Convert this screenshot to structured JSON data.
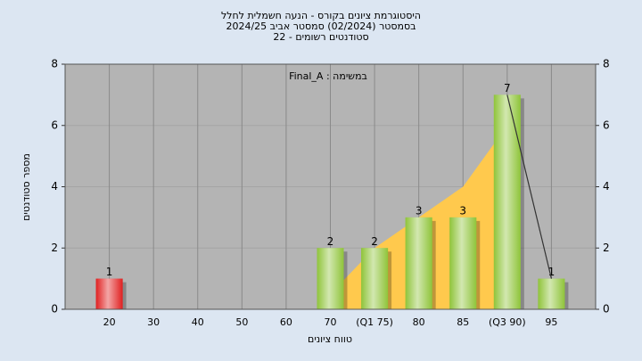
{
  "chart_data": {
    "type": "bar",
    "title_lines": [
      "היסטוגרמת ציונים בקורס - הנעה חשמלית לחלל",
      "בסמסטר  (02/2024)  סמסטר אביב 2024/25",
      "סטודנטים רשומים - 22"
    ],
    "legend_text": "Final_A : במשימה",
    "x_label": "טווח ציונים",
    "y_label": "מספר סטודנטים",
    "categories": [
      "20",
      "30",
      "40",
      "50",
      "60",
      "70",
      "(Q1 75)",
      "80",
      "85",
      "(Q3 90)",
      "95"
    ],
    "values": [
      1,
      0,
      0,
      0,
      0,
      2,
      2,
      3,
      3,
      7,
      1
    ],
    "colors": [
      "#e02020",
      "#8fc43a",
      "#8fc43a",
      "#8fc43a",
      "#8fc43a",
      "#8fc43a",
      "#8fc43a",
      "#8fc43a",
      "#8fc43a",
      "#8fc43a",
      "#8fc43a"
    ],
    "area": {
      "color": "#ffc94d",
      "values": [
        null,
        null,
        null,
        null,
        null,
        0.5,
        2,
        3,
        4,
        6,
        null
      ]
    },
    "line": {
      "color": "#333333",
      "values": [
        null,
        null,
        null,
        null,
        null,
        null,
        null,
        null,
        null,
        7,
        1
      ]
    },
    "ylim": [
      0,
      8
    ],
    "yticks": [
      0,
      2,
      4,
      6,
      8
    ],
    "y2lim": [
      0,
      8
    ],
    "y2ticks": [
      0,
      2,
      4,
      6,
      8
    ],
    "grid": true
  }
}
